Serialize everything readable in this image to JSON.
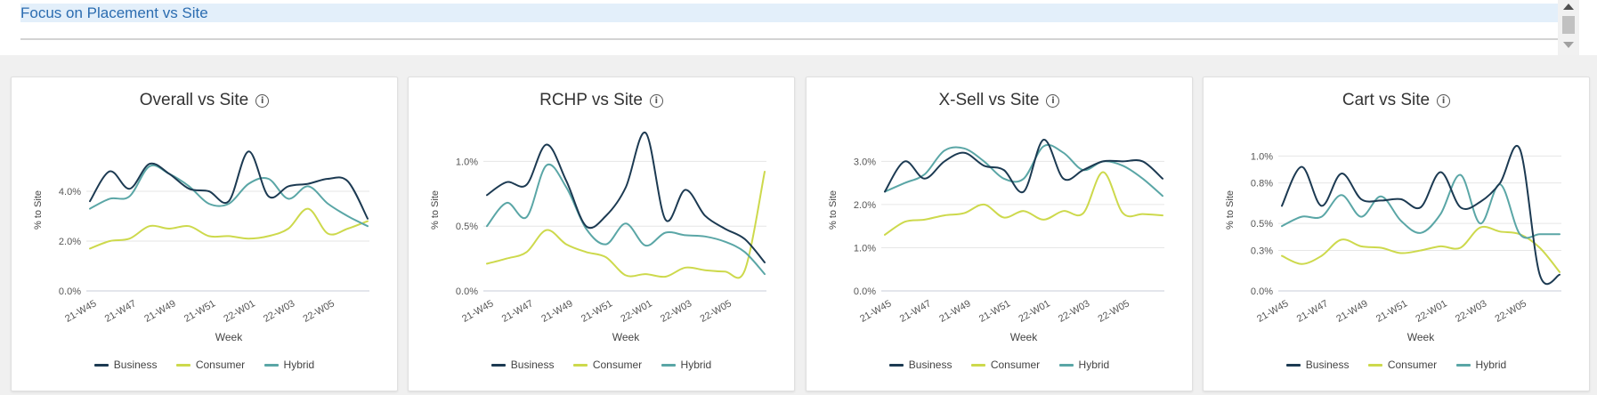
{
  "section": {
    "title": "Focus on Placement vs Site"
  },
  "legend_labels": [
    "Business",
    "Consumer",
    "Hybrid"
  ],
  "colors": {
    "Business": "#1c3a52",
    "Consumer": "#cdd94c",
    "Hybrid": "#5aa6a6"
  },
  "chart_data": [
    {
      "type": "line",
      "title": "Overall vs Site",
      "xlabel": "Week",
      "ylabel": "% to Site",
      "x_tick_labels": [
        "21-W45",
        "21-W47",
        "21-W49",
        "21-W51",
        "22-W01",
        "22-W03",
        "22-W05"
      ],
      "y_ticks": [
        0,
        2,
        4
      ],
      "y_tick_labels": [
        "0.0%",
        "2.0%",
        "4.0%"
      ],
      "ylim": [
        0,
        6.5
      ],
      "n_points": 15,
      "grid": true,
      "legend_position": "bottom",
      "series": [
        {
          "name": "Business",
          "values": [
            3.6,
            4.8,
            4.1,
            5.1,
            4.7,
            4.1,
            4.0,
            3.6,
            5.6,
            3.8,
            4.2,
            4.3,
            4.5,
            4.4,
            2.9
          ]
        },
        {
          "name": "Consumer",
          "values": [
            1.7,
            2.0,
            2.1,
            2.6,
            2.5,
            2.6,
            2.2,
            2.2,
            2.1,
            2.2,
            2.5,
            3.3,
            2.3,
            2.5,
            2.8
          ]
        },
        {
          "name": "Hybrid",
          "values": [
            3.3,
            3.7,
            3.8,
            5.0,
            4.7,
            4.2,
            3.5,
            3.5,
            4.3,
            4.5,
            3.7,
            4.2,
            3.5,
            3.0,
            2.6
          ]
        }
      ]
    },
    {
      "type": "line",
      "title": "RCHP vs Site",
      "xlabel": "Week",
      "ylabel": "% to Site",
      "x_tick_labels": [
        "21-W45",
        "21-W47",
        "21-W49",
        "21-W51",
        "22-W01",
        "22-W03",
        "22-W05"
      ],
      "y_ticks": [
        0,
        0.5,
        1.0
      ],
      "y_tick_labels": [
        "0.0%",
        "0.5%",
        "1.0%"
      ],
      "ylim": [
        0,
        1.25
      ],
      "n_points": 15,
      "grid": true,
      "legend_position": "bottom",
      "series": [
        {
          "name": "Business",
          "values": [
            0.74,
            0.84,
            0.82,
            1.13,
            0.85,
            0.5,
            0.58,
            0.8,
            1.22,
            0.55,
            0.78,
            0.58,
            0.48,
            0.4,
            0.22
          ]
        },
        {
          "name": "Consumer",
          "values": [
            0.21,
            0.25,
            0.3,
            0.47,
            0.36,
            0.3,
            0.26,
            0.12,
            0.13,
            0.11,
            0.18,
            0.16,
            0.15,
            0.16,
            0.92
          ]
        },
        {
          "name": "Hybrid",
          "values": [
            0.5,
            0.68,
            0.57,
            0.97,
            0.8,
            0.48,
            0.36,
            0.52,
            0.35,
            0.45,
            0.43,
            0.42,
            0.38,
            0.3,
            0.13
          ]
        }
      ]
    },
    {
      "type": "line",
      "title": "X-Sell vs Site",
      "xlabel": "Week",
      "ylabel": "% to Site",
      "x_tick_labels": [
        "21-W45",
        "21-W47",
        "21-W49",
        "21-W51",
        "22-W01",
        "22-W03",
        "22-W05"
      ],
      "y_ticks": [
        0,
        1,
        2,
        3
      ],
      "y_tick_labels": [
        "0.0%",
        "1.0%",
        "2.0%",
        "3.0%"
      ],
      "ylim": [
        0,
        3.75
      ],
      "n_points": 15,
      "grid": true,
      "legend_position": "bottom",
      "series": [
        {
          "name": "Business",
          "values": [
            2.3,
            3.0,
            2.6,
            3.0,
            3.2,
            2.9,
            2.8,
            2.3,
            3.5,
            2.6,
            2.8,
            3.0,
            3.0,
            3.0,
            2.6
          ]
        },
        {
          "name": "Consumer",
          "values": [
            1.3,
            1.6,
            1.65,
            1.75,
            1.8,
            2.0,
            1.7,
            1.85,
            1.65,
            1.85,
            1.8,
            2.75,
            1.8,
            1.78,
            1.75
          ]
        },
        {
          "name": "Hybrid",
          "values": [
            2.3,
            2.5,
            2.7,
            3.25,
            3.3,
            3.0,
            2.6,
            2.6,
            3.35,
            3.2,
            2.8,
            3.0,
            2.9,
            2.6,
            2.2
          ]
        }
      ]
    },
    {
      "type": "line",
      "title": "Cart vs Site",
      "xlabel": "Week",
      "ylabel": "% to Site",
      "x_tick_labels": [
        "21-W45",
        "21-W47",
        "21-W49",
        "21-W51",
        "22-W01",
        "22-W03",
        "22-W05"
      ],
      "y_ticks": [
        0,
        0.3,
        0.5,
        0.8,
        1.0
      ],
      "y_tick_labels": [
        "0.0%",
        "0.3%",
        "0.5%",
        "0.8%",
        "1.0%"
      ],
      "ylim": [
        0,
        1.2
      ],
      "n_points": 15,
      "grid": true,
      "legend_position": "bottom",
      "series": [
        {
          "name": "Business",
          "values": [
            0.63,
            0.92,
            0.63,
            0.87,
            0.68,
            0.67,
            0.68,
            0.62,
            0.88,
            0.62,
            0.66,
            0.8,
            1.05,
            0.12,
            0.12
          ]
        },
        {
          "name": "Consumer",
          "values": [
            0.26,
            0.2,
            0.26,
            0.38,
            0.33,
            0.32,
            0.28,
            0.3,
            0.33,
            0.32,
            0.47,
            0.44,
            0.42,
            0.32,
            0.14
          ]
        },
        {
          "name": "Hybrid",
          "values": [
            0.48,
            0.55,
            0.55,
            0.71,
            0.55,
            0.7,
            0.52,
            0.43,
            0.57,
            0.86,
            0.5,
            0.79,
            0.42,
            0.42,
            0.42
          ]
        }
      ]
    }
  ]
}
